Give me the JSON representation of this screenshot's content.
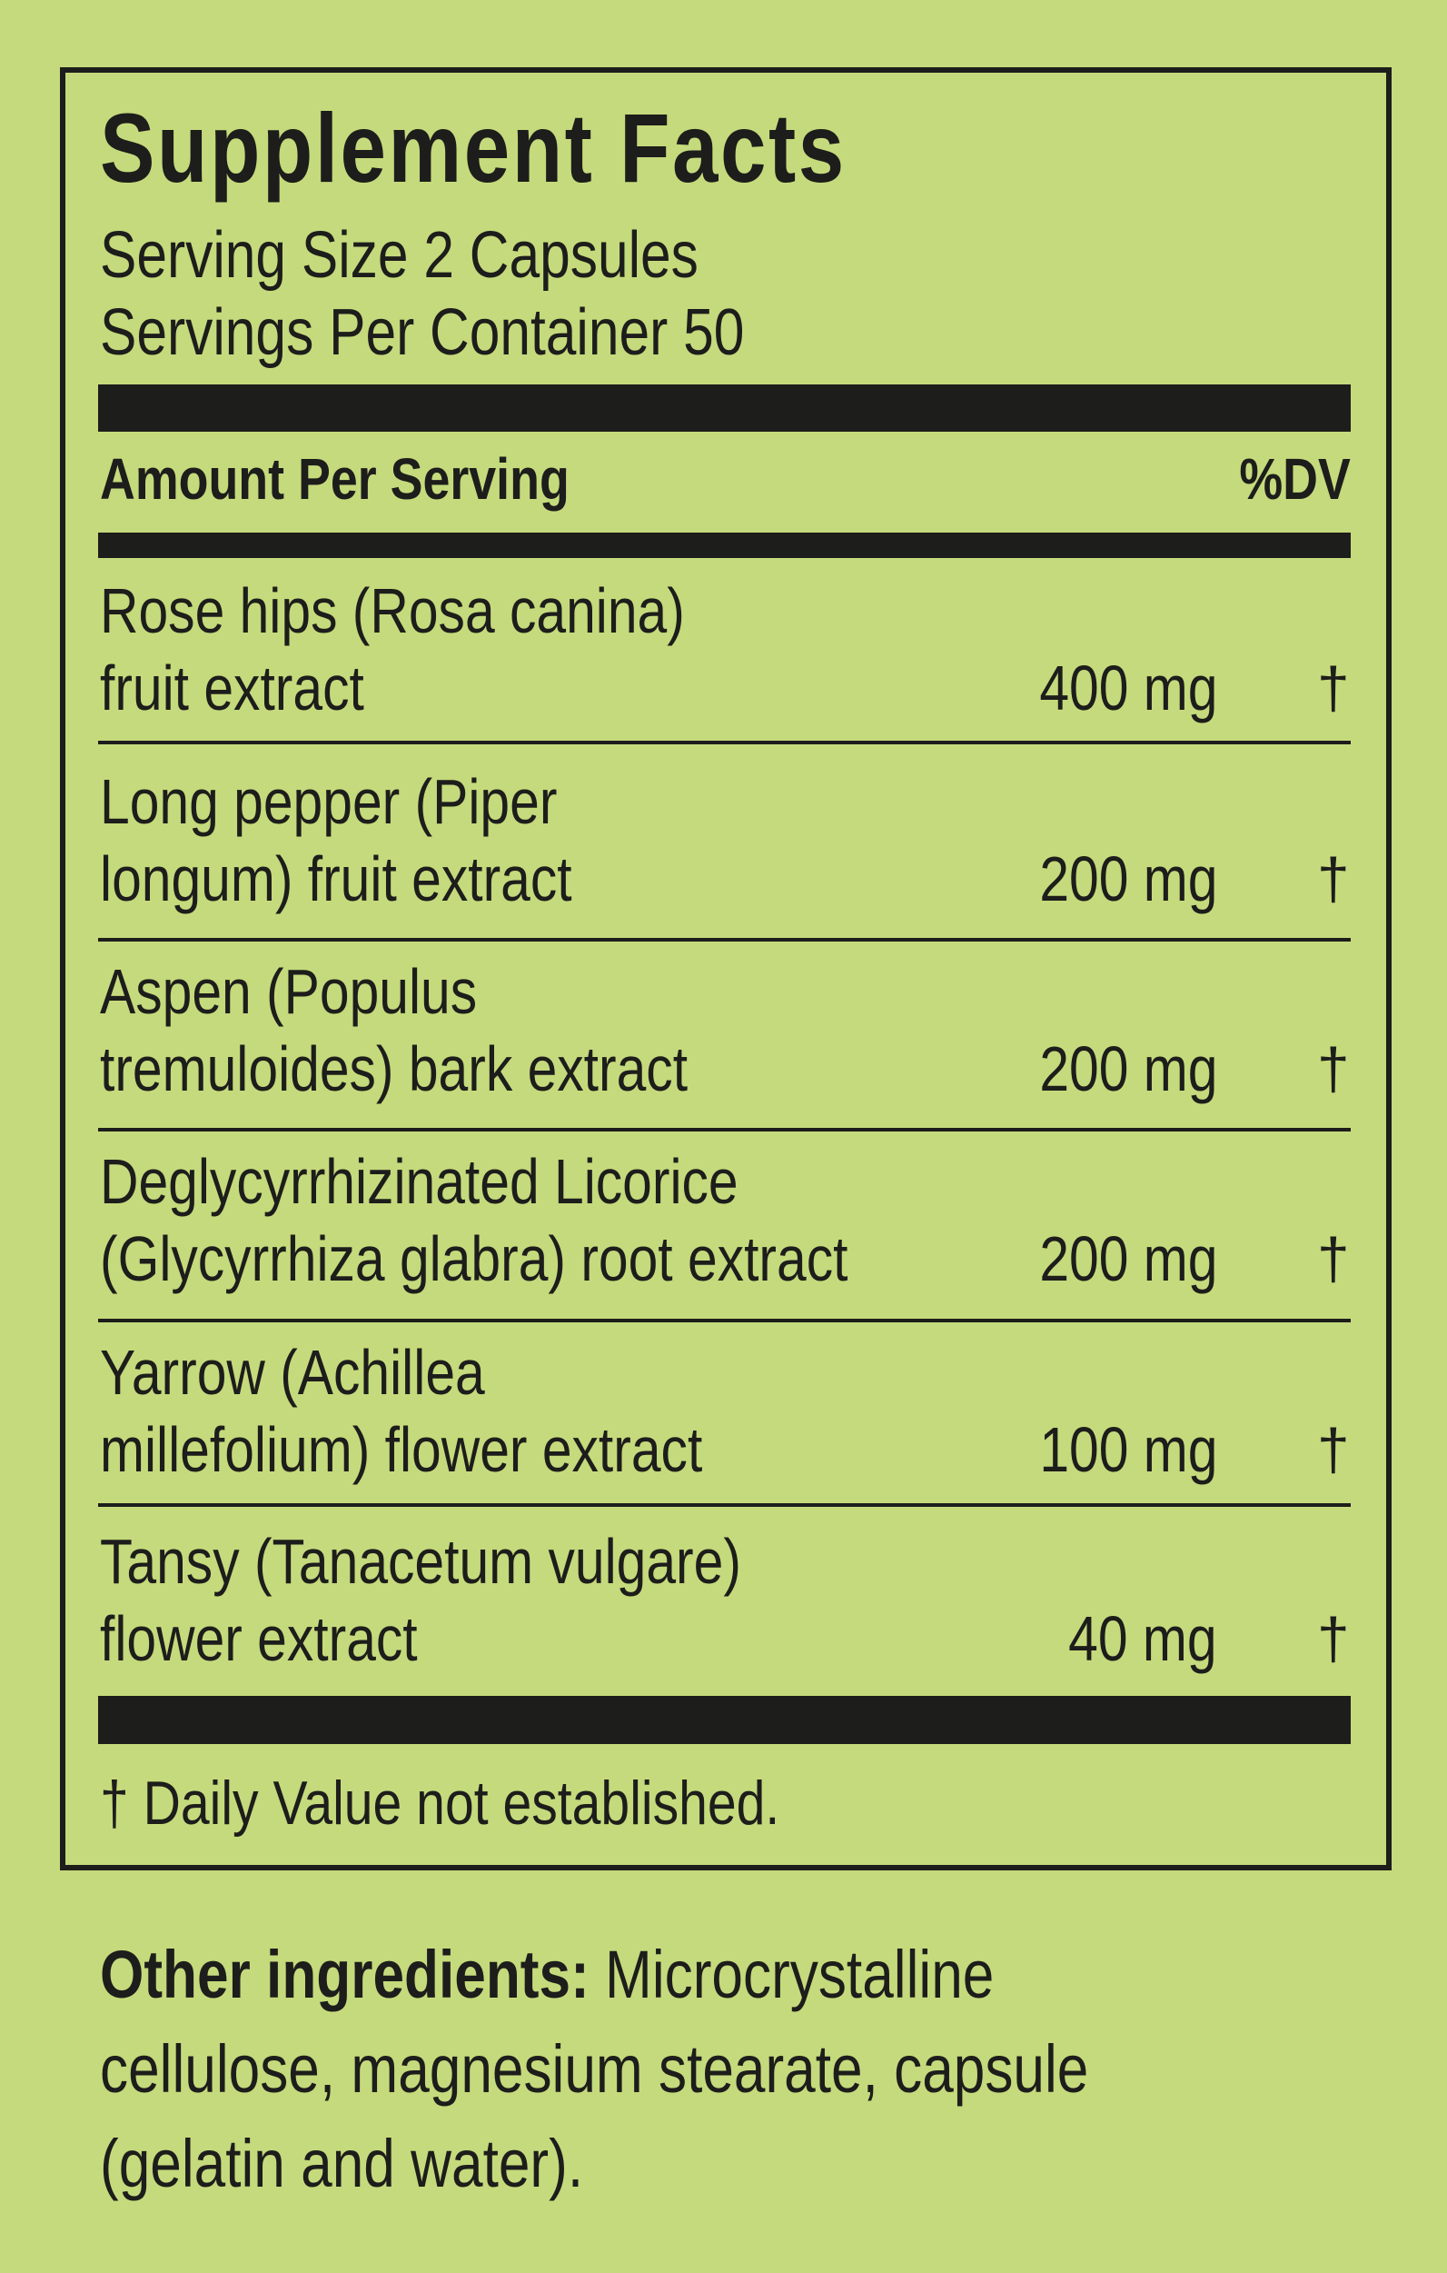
{
  "title": "Supplement Facts",
  "serving_size": "Serving Size 2 Capsules",
  "servings_per_container": "Servings Per Container 50",
  "header": {
    "amount": "Amount Per Serving",
    "dv": "%DV"
  },
  "ingredients": [
    {
      "line1": "Rose hips (Rosa canina)",
      "line2": "fruit extract",
      "amount": "400 mg",
      "dv": "†"
    },
    {
      "line1": "Long pepper (Piper",
      "line2": "longum) fruit extract",
      "amount": "200 mg",
      "dv": "†"
    },
    {
      "line1": "Aspen (Populus",
      "line2": "tremuloides) bark extract",
      "amount": "200 mg",
      "dv": "†"
    },
    {
      "line1": "Deglycyrrhizinated Licorice",
      "line2": "(Glycyrrhiza glabra) root extract",
      "amount": "200 mg",
      "dv": "†"
    },
    {
      "line1": "Yarrow (Achillea",
      "line2": "millefolium) flower extract",
      "amount": "100 mg",
      "dv": "†"
    },
    {
      "line1": "Tansy (Tanacetum vulgare)",
      "line2": "flower extract",
      "amount": "40 mg",
      "dv": "†"
    }
  ],
  "footnote": "† Daily Value not established.",
  "other_ingredients": {
    "label": "Other ingredients:",
    "line1": " Microcrystalline",
    "line2": "cellulose, magnesium stearate, capsule",
    "line3": "(gelatin and water)."
  },
  "colors": {
    "background": "#c5da7c",
    "ink": "#1d1d1b"
  }
}
